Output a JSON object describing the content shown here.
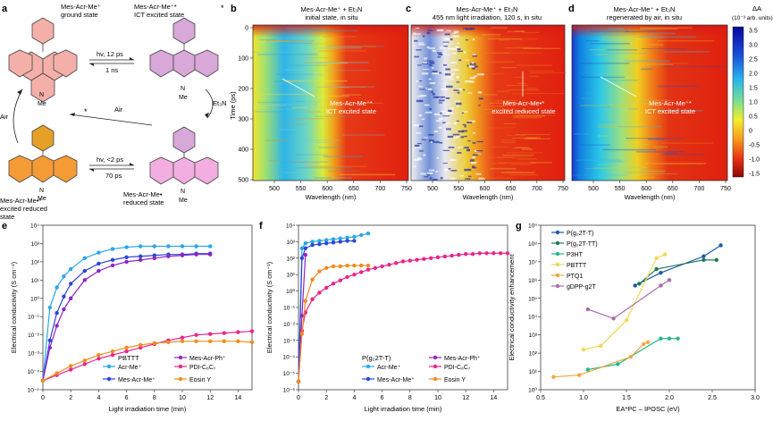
{
  "panel_letters": [
    "a",
    "b",
    "c",
    "d",
    "e",
    "f",
    "g"
  ],
  "scheme": {
    "ground": {
      "name": "Mes-Acr-Me⁺",
      "desc": "ground state"
    },
    "ict": {
      "name": "Mes-Acr-Me⁺*",
      "desc": "ICT excited state"
    },
    "red_excited": {
      "name": "Mes-Acr-Me•*",
      "desc1": "excited reduced",
      "desc2": "state"
    },
    "reduced": {
      "name": "Mes-Acr-Me•",
      "desc": "reduced state"
    },
    "hv_12": "hv, 12 ps",
    "ns1": "1 ns",
    "hv_2": "hv, <2 ps",
    "ps70": "70 ps",
    "air1": "Air",
    "air2": "Air",
    "et3n": "Et₃N",
    "me": "Me",
    "n": "N",
    "star": "*"
  },
  "maps": {
    "b": {
      "title1": "Mes-Acr-Me⁺ + Et₃N",
      "title2": "initial state, in situ",
      "label1": "Mes-Acr-Me⁺*",
      "label2": "ICT excited state"
    },
    "c": {
      "title1": "Mes-Acr-Me⁺ + Et₃N",
      "title2": "455 nm light irradiation, 120 s, in situ",
      "label1": "Mes-Acr-Me•*",
      "label2": "excited reduced state"
    },
    "d": {
      "title1": "Mes-Acr-Me⁺ + Et₃N",
      "title2": "regenerated by air, in situ",
      "label1": "Mes-Acr-Me⁺*",
      "label2": "ICT excited state"
    },
    "ylabel": "Time (ps)",
    "xlabel": "Wavelength (nm)",
    "yticks": [
      "0",
      "100",
      "200",
      "300",
      "400",
      "500"
    ],
    "xticks_b": [
      "500",
      "550",
      "600",
      "650",
      "700",
      "750"
    ],
    "xticks_c": [
      "500",
      "550",
      "600",
      "650",
      "700",
      "750"
    ],
    "xticks_d": [
      "500",
      "550",
      "600",
      "650",
      "700",
      "750"
    ],
    "colorbar_title1": "ΔA",
    "colorbar_title2": "(10⁻³ arb. units)",
    "colorbar_ticks": [
      "3.5",
      "3.0",
      "2.5",
      "2.0",
      "1.5",
      "1.0",
      "0.5",
      "0",
      "-0.5",
      "-1.0",
      "-1.5"
    ]
  },
  "colors": {
    "acr": "#2aa7e8",
    "mesacr": "#2b45d6",
    "mesph": "#8e25c7",
    "pdi": "#e8258a",
    "eosin": "#f08c1e",
    "g_p2tt": "#1d5aa8",
    "g_p2ttt": "#1e7a52",
    "g_p3ht": "#26b88a",
    "g_pbttt": "#f2d65a",
    "g_ptq1": "#f4a540",
    "g_gdpp": "#a86cae"
  },
  "chart_data": [
    {
      "type": "line",
      "panel": "e",
      "xlabel": "Light irradiation time (min)",
      "ylabel": "Electrical conductivity (S cm⁻¹)",
      "xlim": [
        0,
        15
      ],
      "ylim_log10": [
        -5,
        4
      ],
      "xticks": [
        "0",
        "2",
        "4",
        "6",
        "8",
        "10",
        "12",
        "14"
      ],
      "yticks": [
        "10⁻⁵",
        "10⁻⁴",
        "10⁻³",
        "10⁻²",
        "10⁻¹",
        "10⁰",
        "10¹",
        "10²",
        "10³",
        "10⁴"
      ],
      "material_label": "PBTTT",
      "series": [
        {
          "name": "Acr-Me⁺",
          "x": [
            0,
            0.5,
            1,
            1.5,
            2,
            3,
            4,
            5,
            6,
            7,
            8,
            9,
            10,
            11,
            12
          ],
          "log10y": [
            -4.5,
            -0.5,
            0.6,
            1.2,
            1.6,
            2.2,
            2.5,
            2.7,
            2.8,
            2.85,
            2.85,
            2.85,
            2.85,
            2.85,
            2.85
          ]
        },
        {
          "name": "Mes-Acr-Me⁺",
          "x": [
            0,
            0.5,
            1,
            1.5,
            2,
            3,
            4,
            5,
            6,
            7,
            8,
            9,
            10,
            11,
            12
          ],
          "log10y": [
            -4.5,
            -2.3,
            -0.8,
            0.1,
            0.8,
            1.5,
            1.9,
            2.1,
            2.25,
            2.3,
            2.35,
            2.4,
            2.4,
            2.45,
            2.45
          ]
        },
        {
          "name": "Mes-Acr-Ph⁺",
          "x": [
            0,
            0.5,
            1,
            1.5,
            2,
            3,
            4,
            5,
            6,
            7,
            8,
            9,
            10,
            11,
            12
          ],
          "log10y": [
            -4.5,
            -2.7,
            -1.5,
            -0.6,
            0,
            1,
            1.5,
            1.8,
            2,
            2.1,
            2.2,
            2.3,
            2.35,
            2.4,
            2.4
          ]
        },
        {
          "name": "PDI-C₆C₇",
          "x": [
            0,
            1,
            2,
            3,
            4,
            5,
            6,
            7,
            8,
            9,
            10,
            11,
            12,
            13,
            14,
            15
          ],
          "log10y": [
            -4.5,
            -4.2,
            -3.9,
            -3.6,
            -3.3,
            -3.1,
            -2.9,
            -2.7,
            -2.5,
            -2.3,
            -2.15,
            -2.0,
            -1.95,
            -1.9,
            -1.85,
            -1.8
          ]
        },
        {
          "name": "Eosin Y",
          "x": [
            0,
            1,
            2,
            3,
            4,
            5,
            6,
            7,
            8,
            9,
            10,
            11,
            12,
            13,
            14,
            15
          ],
          "log10y": [
            -4.5,
            -4.1,
            -3.7,
            -3.4,
            -3.1,
            -2.9,
            -2.7,
            -2.55,
            -2.45,
            -2.4,
            -2.35,
            -2.35,
            -2.35,
            -2.35,
            -2.35,
            -2.4
          ]
        }
      ]
    },
    {
      "type": "line",
      "panel": "f",
      "xlabel": "Light irradiation time (min)",
      "ylabel": "Electrical conductivity (S cm⁻¹)",
      "xlim": [
        0,
        15
      ],
      "ylim_log10": [
        -6,
        4
      ],
      "xticks": [
        "0",
        "2",
        "4",
        "6",
        "8",
        "10",
        "12",
        "14"
      ],
      "yticks": [
        "10⁻⁶",
        "10⁻⁵",
        "10⁻⁴",
        "10⁻³",
        "10⁻²",
        "10⁻¹",
        "10⁰",
        "10¹",
        "10²",
        "10³",
        "10⁴"
      ],
      "material_label": "P(g₂2T-T)",
      "series": [
        {
          "name": "Acr-Me⁺",
          "x": [
            0,
            0.25,
            0.5,
            1,
            1.5,
            2,
            2.5,
            3,
            3.5,
            4,
            4.5,
            5
          ],
          "log10y": [
            -5.5,
            2.6,
            2.9,
            3.0,
            3.05,
            3.1,
            3.15,
            3.2,
            3.25,
            3.3,
            3.4,
            3.5
          ]
        },
        {
          "name": "Mes-Acr-Me⁺",
          "x": [
            0,
            0.25,
            0.5,
            1,
            1.5,
            2,
            2.5,
            3,
            3.5,
            4
          ],
          "log10y": [
            -5.5,
            2.0,
            2.6,
            2.8,
            2.85,
            2.9,
            2.95,
            3.0,
            3.05,
            3.05
          ]
        },
        {
          "name": "Mes-Acr-Ph⁺",
          "x": [
            0,
            0.25,
            0.5
          ],
          "log10y": [
            -5.5,
            -1.5,
            2.2
          ]
        },
        {
          "name": "PDI-C₆C₇",
          "x": [
            0,
            0.25,
            0.5,
            1,
            1.5,
            2,
            2.5,
            3,
            3.5,
            4,
            4.5,
            5,
            5.5,
            6,
            6.5,
            7,
            7.5,
            8,
            8.5,
            9,
            9.5,
            10,
            10.5,
            11,
            11.5,
            12,
            12.5,
            13,
            13.5,
            14,
            14.5,
            15
          ],
          "log10y": [
            -5.5,
            -2.4,
            -1.3,
            -0.5,
            -0.1,
            0.2,
            0.45,
            0.65,
            0.85,
            1.0,
            1.15,
            1.3,
            1.4,
            1.5,
            1.6,
            1.7,
            1.8,
            1.85,
            1.9,
            1.95,
            2.0,
            2.05,
            2.1,
            2.15,
            2.2,
            2.25,
            2.25,
            2.3,
            2.3,
            2.3,
            2.3,
            2.3
          ]
        },
        {
          "name": "Eosin Y",
          "x": [
            0,
            0.25,
            0.5,
            1,
            1.5,
            2,
            2.5,
            3,
            3.5,
            4,
            4.5,
            5
          ],
          "log10y": [
            -5.5,
            -2.6,
            -0.6,
            0.7,
            1.2,
            1.4,
            1.5,
            1.5,
            1.55,
            1.55,
            1.55,
            1.55
          ]
        }
      ]
    },
    {
      "type": "line",
      "panel": "g",
      "xlabel": "EA*PC – IPOSC (eV)",
      "ylabel": "Electrical conductivity enhancement",
      "xlim": [
        0.5,
        3.0
      ],
      "ylim_log10": [
        0,
        9
      ],
      "xticks": [
        "0.5",
        "1.0",
        "1.5",
        "2.0",
        "2.5",
        "3.0"
      ],
      "yticks": [
        "10⁰",
        "10¹",
        "10²",
        "10³",
        "10⁴",
        "10⁵",
        "10⁶",
        "10⁷",
        "10⁸",
        "10⁹"
      ],
      "series": [
        {
          "name": "P(g₂2T-T)",
          "x": [
            1.6,
            1.9,
            2.4,
            2.6
          ],
          "log10y": [
            5.7,
            6.4,
            7.3,
            7.9
          ]
        },
        {
          "name": "P(g₂2T-TT)",
          "x": [
            1.65,
            1.85,
            2.4,
            2.55
          ],
          "log10y": [
            5.8,
            6.6,
            7.1,
            7.1
          ]
        },
        {
          "name": "P3HT",
          "x": [
            1.05,
            1.4,
            1.9,
            2.0,
            2.1
          ],
          "log10y": [
            1.1,
            1.4,
            2.8,
            2.8,
            2.8
          ]
        },
        {
          "name": "PBTTT",
          "x": [
            1.0,
            1.2,
            1.5,
            1.85,
            1.95
          ],
          "log10y": [
            2.2,
            2.4,
            3.8,
            7.2,
            7.4
          ]
        },
        {
          "name": "PTQ1",
          "x": [
            0.65,
            0.95,
            1.55,
            1.7,
            1.75
          ],
          "log10y": [
            0.7,
            0.8,
            1.8,
            2.5,
            2.6
          ]
        },
        {
          "name": "gDPP-g2T",
          "x": [
            1.05,
            1.35,
            1.9,
            2.0
          ],
          "log10y": [
            4.4,
            3.9,
            5.7,
            6.0
          ]
        }
      ]
    }
  ]
}
